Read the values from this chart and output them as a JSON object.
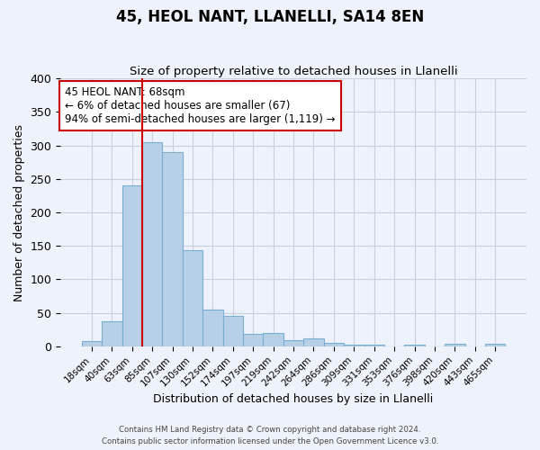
{
  "title": "45, HEOL NANT, LLANELLI, SA14 8EN",
  "subtitle": "Size of property relative to detached houses in Llanelli",
  "xlabel": "Distribution of detached houses by size in Llanelli",
  "ylabel": "Number of detached properties",
  "bar_labels": [
    "18sqm",
    "40sqm",
    "63sqm",
    "85sqm",
    "107sqm",
    "130sqm",
    "152sqm",
    "174sqm",
    "197sqm",
    "219sqm",
    "242sqm",
    "264sqm",
    "286sqm",
    "309sqm",
    "331sqm",
    "353sqm",
    "376sqm",
    "398sqm",
    "420sqm",
    "443sqm",
    "465sqm"
  ],
  "bar_values": [
    8,
    38,
    240,
    305,
    290,
    143,
    55,
    45,
    18,
    20,
    9,
    12,
    5,
    3,
    2,
    0,
    3,
    0,
    4,
    0,
    4
  ],
  "bar_color": "#b8cfe8",
  "bar_edge_color": "#7aafd4",
  "vline_color": "#cc0000",
  "vline_x": 2.5,
  "ylim": [
    0,
    400
  ],
  "yticks": [
    0,
    50,
    100,
    150,
    200,
    250,
    300,
    350,
    400
  ],
  "annotation_title": "45 HEOL NANT: 68sqm",
  "annotation_line1": "← 6% of detached houses are smaller (67)",
  "annotation_line2": "94% of semi-detached houses are larger (1,119) →",
  "annotation_box_color": "#ffffff",
  "annotation_box_edge_color": "#cc0000",
  "footer_line1": "Contains HM Land Registry data © Crown copyright and database right 2024.",
  "footer_line2": "Contains public sector information licensed under the Open Government Licence v3.0.",
  "background_color": "#eef2fa",
  "grid_color": "#c8d0e0"
}
